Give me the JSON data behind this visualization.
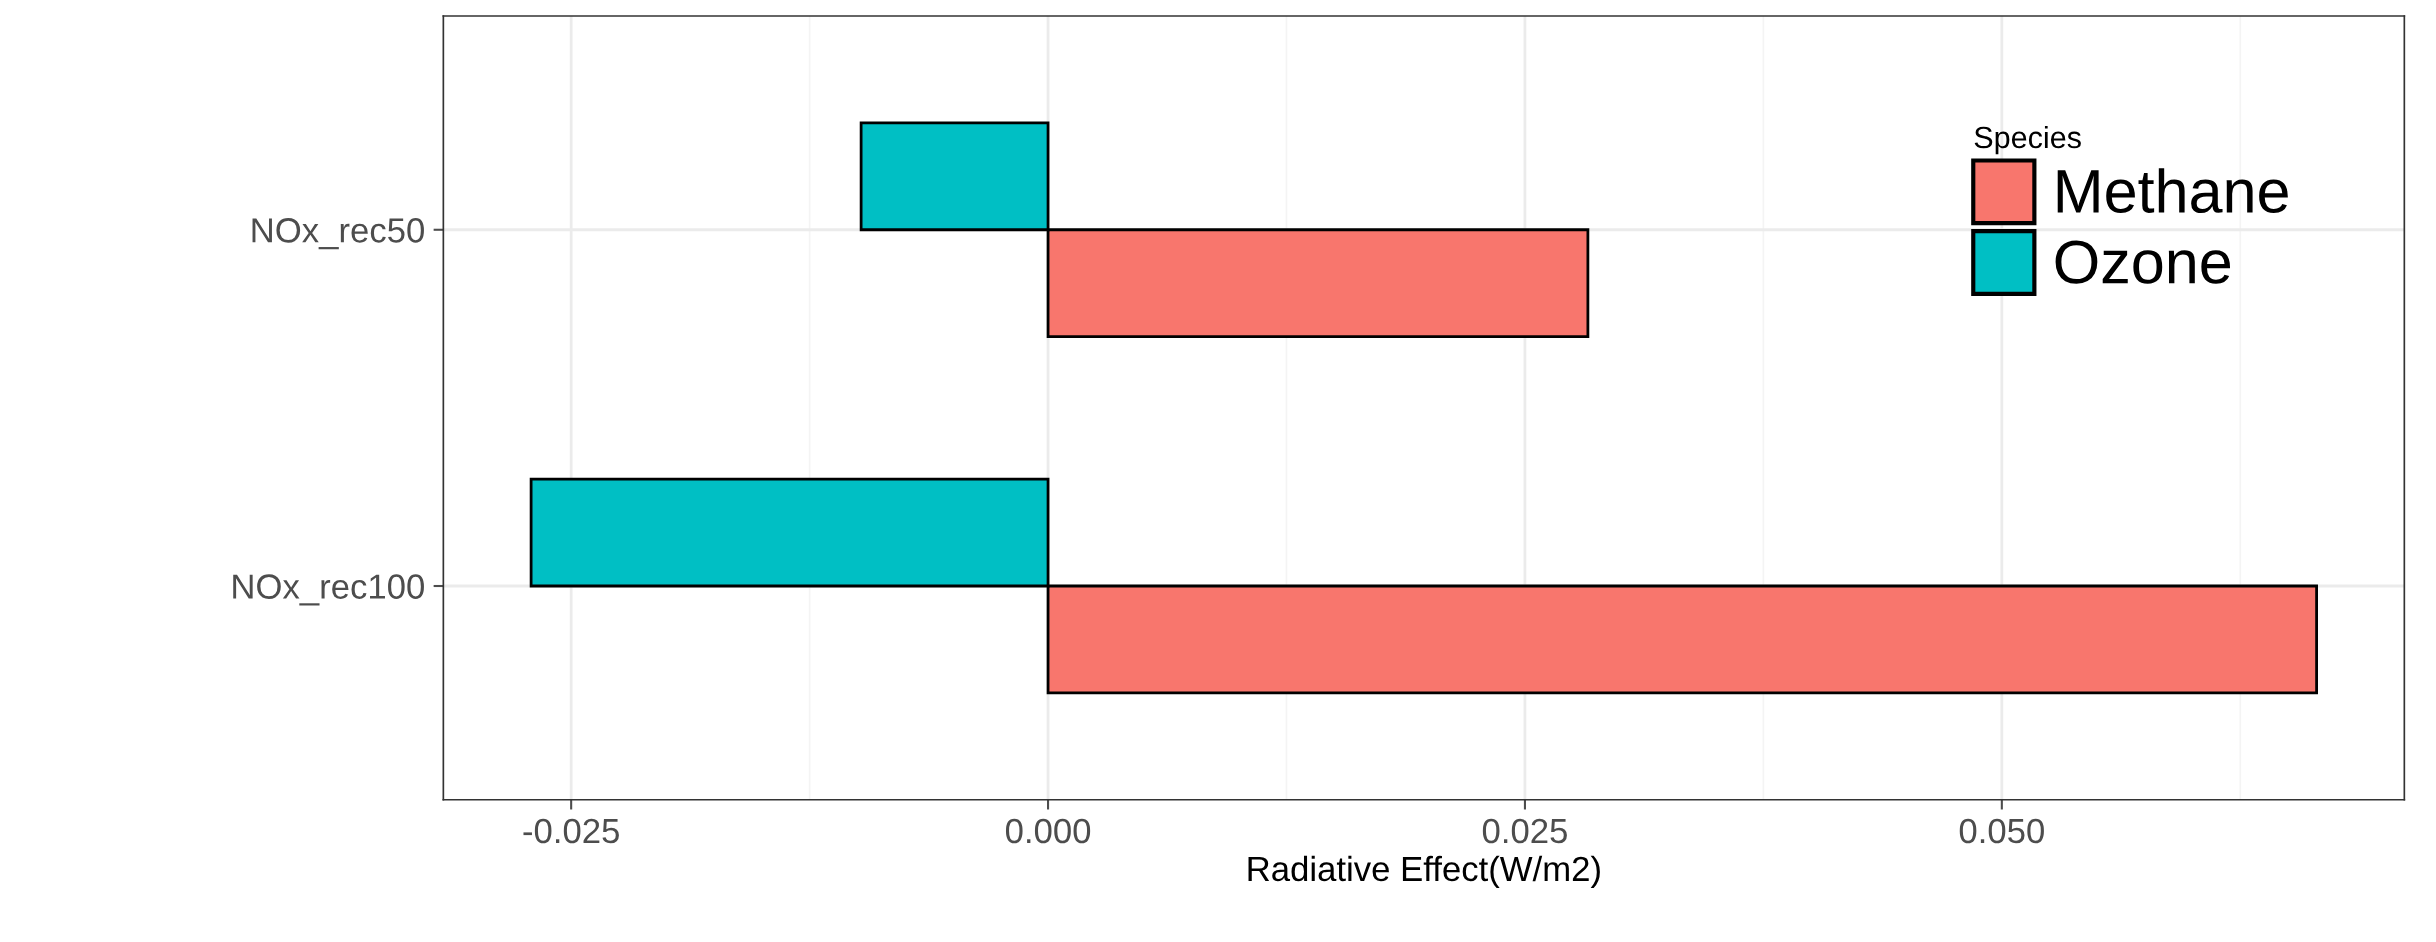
{
  "chart_data": {
    "type": "bar",
    "orientation": "horizontal",
    "xlabel": "Radiative Effect(W/m2)",
    "legend_title": "Species",
    "categories": [
      "NOx_rec50",
      "NOx_rec100"
    ],
    "series": [
      {
        "name": "Methane",
        "color": "#f8766d",
        "values": [
          0.0283,
          0.0665
        ]
      },
      {
        "name": "Ozone",
        "color": "#00bfc4",
        "values": [
          -0.0098,
          -0.0271
        ]
      }
    ],
    "xlim": [
      -0.0317,
      0.0711
    ],
    "xticks": [
      {
        "value": -0.025,
        "label": "-0.025"
      },
      {
        "value": 0,
        "label": "0.000"
      },
      {
        "value": 0.025,
        "label": "0.025"
      },
      {
        "value": 0.05,
        "label": "0.050"
      }
    ],
    "grid": true,
    "legend": "top right"
  }
}
